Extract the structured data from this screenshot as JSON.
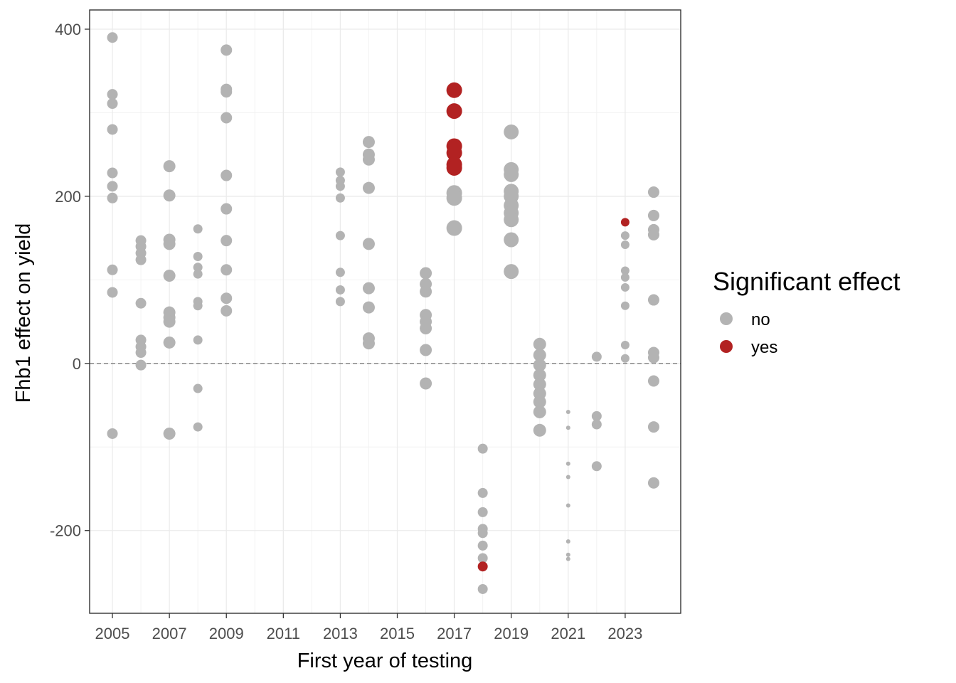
{
  "chart_data": {
    "type": "scatter",
    "xlabel": "First year of testing",
    "ylabel": "Fhb1 effect on yield",
    "xlim": [
      2004.2,
      2024.95
    ],
    "ylim": [
      -299,
      423
    ],
    "x_ticks": [
      2005,
      2007,
      2009,
      2011,
      2013,
      2015,
      2017,
      2019,
      2021,
      2023
    ],
    "y_ticks": [
      -200,
      0,
      200,
      400
    ],
    "reference_line": {
      "y": 0,
      "style": "dashed"
    },
    "grid": true,
    "legend": {
      "title": "Significant effect",
      "position": "right",
      "entries": [
        {
          "label": "no",
          "color": "#b3b3b3"
        },
        {
          "label": "yes",
          "color": "#b22222"
        }
      ]
    },
    "series": [
      {
        "name": "no",
        "color": "#b3b3b3",
        "points": [
          [
            2005,
            390,
            1.5
          ],
          [
            2005,
            322,
            1.5
          ],
          [
            2005,
            311,
            1.5
          ],
          [
            2005,
            280,
            1.5
          ],
          [
            2005,
            228,
            1.5
          ],
          [
            2005,
            212,
            1.5
          ],
          [
            2005,
            198,
            1.5
          ],
          [
            2005,
            112,
            1.5
          ],
          [
            2005,
            85,
            1.5
          ],
          [
            2005,
            -84,
            1.5
          ],
          [
            2006,
            147,
            1.5
          ],
          [
            2006,
            140,
            1.5
          ],
          [
            2006,
            132,
            1.5
          ],
          [
            2006,
            124,
            1.5
          ],
          [
            2006,
            72,
            1.5
          ],
          [
            2006,
            28,
            1.5
          ],
          [
            2006,
            20,
            1.5
          ],
          [
            2006,
            13,
            1.5
          ],
          [
            2006,
            -2,
            1.5
          ],
          [
            2007,
            236,
            1.7
          ],
          [
            2007,
            201,
            1.7
          ],
          [
            2007,
            148,
            1.7
          ],
          [
            2007,
            143,
            1.7
          ],
          [
            2007,
            105,
            1.7
          ],
          [
            2007,
            61,
            1.7
          ],
          [
            2007,
            55,
            1.7
          ],
          [
            2007,
            50,
            1.7
          ],
          [
            2007,
            25,
            1.7
          ],
          [
            2007,
            -84,
            1.7
          ],
          [
            2008,
            161,
            1.3
          ],
          [
            2008,
            128,
            1.3
          ],
          [
            2008,
            115,
            1.3
          ],
          [
            2008,
            107,
            1.3
          ],
          [
            2008,
            74,
            1.3
          ],
          [
            2008,
            69,
            1.3
          ],
          [
            2008,
            28,
            1.3
          ],
          [
            2008,
            -30,
            1.3
          ],
          [
            2008,
            -76,
            1.3
          ],
          [
            2009,
            375,
            1.6
          ],
          [
            2009,
            328,
            1.6
          ],
          [
            2009,
            325,
            1.6
          ],
          [
            2009,
            294,
            1.6
          ],
          [
            2009,
            225,
            1.6
          ],
          [
            2009,
            185,
            1.6
          ],
          [
            2009,
            147,
            1.6
          ],
          [
            2009,
            112,
            1.6
          ],
          [
            2009,
            78,
            1.6
          ],
          [
            2009,
            63,
            1.6
          ],
          [
            2013,
            229,
            1.3
          ],
          [
            2013,
            219,
            1.3
          ],
          [
            2013,
            212,
            1.3
          ],
          [
            2013,
            198,
            1.3
          ],
          [
            2013,
            153,
            1.3
          ],
          [
            2013,
            109,
            1.3
          ],
          [
            2013,
            88,
            1.3
          ],
          [
            2013,
            74,
            1.3
          ],
          [
            2014,
            265,
            1.7
          ],
          [
            2014,
            250,
            1.7
          ],
          [
            2014,
            244,
            1.7
          ],
          [
            2014,
            210,
            1.7
          ],
          [
            2014,
            143,
            1.7
          ],
          [
            2014,
            90,
            1.7
          ],
          [
            2014,
            67,
            1.7
          ],
          [
            2014,
            30,
            1.7
          ],
          [
            2014,
            24,
            1.7
          ],
          [
            2016,
            108,
            1.7
          ],
          [
            2016,
            95,
            1.7
          ],
          [
            2016,
            86,
            1.7
          ],
          [
            2016,
            58,
            1.7
          ],
          [
            2016,
            50,
            1.7
          ],
          [
            2016,
            42,
            1.7
          ],
          [
            2016,
            16,
            1.7
          ],
          [
            2016,
            -24,
            1.7
          ],
          [
            2017,
            204,
            2.2
          ],
          [
            2017,
            198,
            2.2
          ],
          [
            2017,
            162,
            2.2
          ],
          [
            2018,
            -102,
            1.4
          ],
          [
            2018,
            -155,
            1.4
          ],
          [
            2018,
            -178,
            1.4
          ],
          [
            2018,
            -198,
            1.4
          ],
          [
            2018,
            -203,
            1.4
          ],
          [
            2018,
            -218,
            1.4
          ],
          [
            2018,
            -233,
            1.4
          ],
          [
            2018,
            -270,
            1.4
          ],
          [
            2019,
            277,
            2.1
          ],
          [
            2019,
            232,
            2.1
          ],
          [
            2019,
            226,
            2.1
          ],
          [
            2019,
            206,
            2.1
          ],
          [
            2019,
            200,
            2.1
          ],
          [
            2019,
            189,
            2.1
          ],
          [
            2019,
            180,
            2.1
          ],
          [
            2019,
            172,
            2.1
          ],
          [
            2019,
            148,
            2.1
          ],
          [
            2019,
            110,
            2.1
          ],
          [
            2020,
            23,
            1.8
          ],
          [
            2020,
            10,
            1.8
          ],
          [
            2020,
            -2,
            1.8
          ],
          [
            2020,
            -14,
            1.8
          ],
          [
            2020,
            -25,
            1.8
          ],
          [
            2020,
            -36,
            1.8
          ],
          [
            2020,
            -46,
            1.8
          ],
          [
            2020,
            -58,
            1.8
          ],
          [
            2020,
            -80,
            1.8
          ],
          [
            2021,
            -58,
            0.6
          ],
          [
            2021,
            -77,
            0.6
          ],
          [
            2021,
            -120,
            0.6
          ],
          [
            2021,
            -136,
            0.6
          ],
          [
            2021,
            -170,
            0.6
          ],
          [
            2021,
            -213,
            0.6
          ],
          [
            2021,
            -229,
            0.6
          ],
          [
            2021,
            -234,
            0.6
          ],
          [
            2022,
            8,
            1.4
          ],
          [
            2022,
            -63,
            1.4
          ],
          [
            2022,
            -73,
            1.4
          ],
          [
            2022,
            -123,
            1.4
          ],
          [
            2023,
            153,
            1.2
          ],
          [
            2023,
            142,
            1.2
          ],
          [
            2023,
            111,
            1.2
          ],
          [
            2023,
            103,
            1.2
          ],
          [
            2023,
            91,
            1.2
          ],
          [
            2023,
            69,
            1.2
          ],
          [
            2023,
            22,
            1.2
          ],
          [
            2023,
            6,
            1.2
          ],
          [
            2024,
            205,
            1.6
          ],
          [
            2024,
            177,
            1.6
          ],
          [
            2024,
            160,
            1.6
          ],
          [
            2024,
            154,
            1.6
          ],
          [
            2024,
            76,
            1.6
          ],
          [
            2024,
            13,
            1.6
          ],
          [
            2024,
            7,
            1.6
          ],
          [
            2024,
            -21,
            1.6
          ],
          [
            2024,
            -76,
            1.6
          ],
          [
            2024,
            -143,
            1.6
          ]
        ]
      },
      {
        "name": "yes",
        "color": "#b22222",
        "points": [
          [
            2017,
            327,
            2.2
          ],
          [
            2017,
            302,
            2.2
          ],
          [
            2017,
            260,
            2.2
          ],
          [
            2017,
            252,
            2.2
          ],
          [
            2017,
            238,
            2.2
          ],
          [
            2017,
            234,
            2.2
          ],
          [
            2018,
            -243,
            1.4
          ],
          [
            2023,
            169,
            1.2
          ]
        ]
      }
    ]
  }
}
